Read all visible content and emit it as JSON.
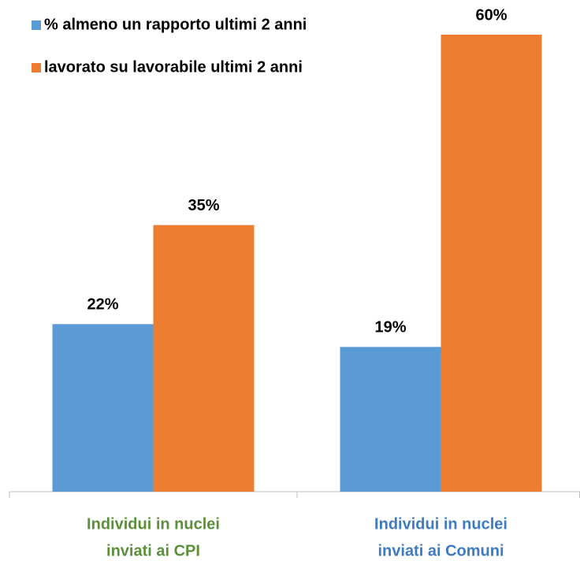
{
  "chart_data": {
    "type": "bar",
    "categories": [
      [
        "Individui in nuclei",
        "inviati ai CPI"
      ],
      [
        "Individui in nuclei",
        "inviati ai Comuni"
      ]
    ],
    "category_colors": [
      "#5b8f3a",
      "#3f7bbf"
    ],
    "series": [
      {
        "name": "% almeno un rapporto ultimi 2 anni",
        "color": "#5b9bd5",
        "values": [
          22,
          19
        ],
        "value_labels": [
          "22%",
          "19%"
        ]
      },
      {
        "name": "lavorato su lavorabile ultimi 2 anni",
        "color": "#ed7d31",
        "values": [
          35,
          60
        ],
        "value_labels": [
          "35%",
          "60%"
        ]
      }
    ],
    "legend": "top-left"
  }
}
